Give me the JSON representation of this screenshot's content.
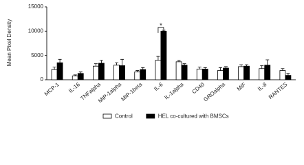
{
  "chart_data": {
    "type": "bar",
    "y_label": "Mean Pixel Density",
    "categories": [
      "MCP-1",
      "IL-16",
      "TNFalpha",
      "MIP-1alpha",
      "MIP-1beta",
      "IL-6",
      "IL-1alpha",
      "CD40",
      "GROalpha",
      "MIF",
      "IL-8",
      "RANTES"
    ],
    "series": [
      {
        "name": "Control",
        "color": "#ffffff",
        "values": [
          2100,
          800,
          2800,
          3000,
          1600,
          4000,
          3700,
          2200,
          1900,
          2700,
          2300,
          1900
        ],
        "errors": [
          500,
          200,
          500,
          500,
          300,
          800,
          300,
          400,
          600,
          400,
          600,
          400
        ]
      },
      {
        "name": "HEL co-cultured with BMSCs",
        "color": "#000000",
        "values": [
          3500,
          1300,
          3400,
          2900,
          2100,
          10000,
          3000,
          2200,
          2400,
          2800,
          3000,
          900
        ],
        "errors": [
          700,
          300,
          600,
          1300,
          400,
          200,
          300,
          300,
          300,
          300,
          1100,
          400
        ]
      }
    ],
    "annotation": "*",
    "ylim": [
      0,
      15000
    ],
    "yticks": [
      0,
      5000,
      10000,
      15000
    ]
  }
}
